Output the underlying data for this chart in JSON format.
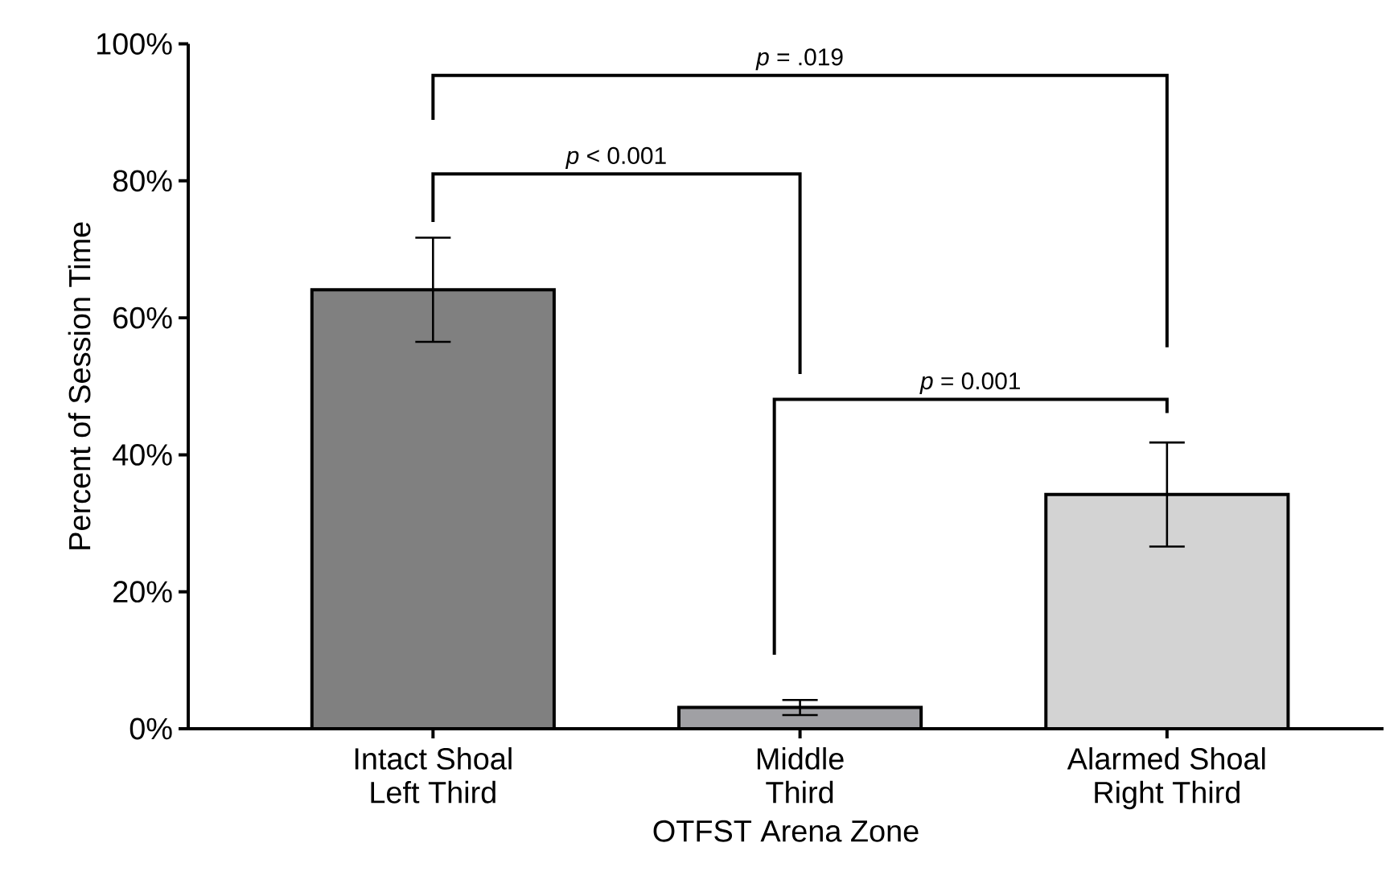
{
  "chart_data": {
    "type": "bar",
    "xlabel": "OTFST Arena Zone",
    "ylabel": "Percent of Session Time",
    "categories": [
      "Intact Shoal Left Third",
      "Middle Third",
      "Alarmed Shoal Right Third"
    ],
    "values": [
      64.1,
      3.1,
      34.2
    ],
    "errors": [
      7.6,
      1.1,
      7.6
    ],
    "colors": [
      "#808080",
      "#a0a0a4",
      "#d3d3d3"
    ],
    "ylim": [
      0,
      100
    ],
    "yticks": [
      {
        "value": 0,
        "label": "0%"
      },
      {
        "value": 20,
        "label": "20%"
      },
      {
        "value": 40,
        "label": "40%"
      },
      {
        "value": 60,
        "label": "60%"
      },
      {
        "value": 80,
        "label": "80%"
      },
      {
        "value": 100,
        "label": "100%"
      }
    ],
    "annotations": [
      "*p* = .019",
      "*p* < 0.001",
      "*p* = 0.001"
    ],
    "grid": false,
    "legend": false
  }
}
